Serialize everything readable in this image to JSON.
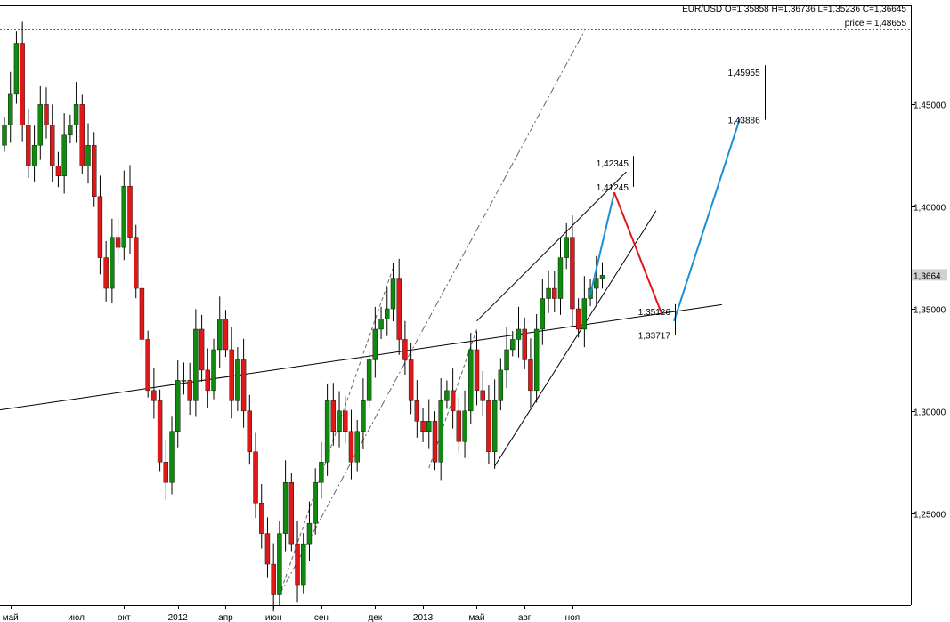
{
  "header": {
    "ohlc": "EUR/USD O=1,35858 H=1,36736 L=1,35236 C=1,36645",
    "price_line_label": "price = 1,48655"
  },
  "chart_data": {
    "type": "candlestick",
    "symbol": "EUR/USD",
    "timeframe": "weekly",
    "ylim": [
      1.205,
      1.4985
    ],
    "y_ticks": [
      {
        "value": 1.25,
        "label": "1,25000"
      },
      {
        "value": 1.3,
        "label": "1,30000"
      },
      {
        "value": 1.35,
        "label": "1,35000"
      },
      {
        "value": 1.4,
        "label": "1,40000"
      },
      {
        "value": 1.45,
        "label": "1,45000"
      }
    ],
    "current_price": {
      "value": 1.3664,
      "label": "1,3664"
    },
    "price_line": {
      "value": 1.48655
    },
    "x_ticks": [
      {
        "bar": 1,
        "label": "май"
      },
      {
        "bar": 12,
        "label": "июл"
      },
      {
        "bar": 20,
        "label": "окт"
      },
      {
        "bar": 29,
        "label": "2012"
      },
      {
        "bar": 37,
        "label": "апр"
      },
      {
        "bar": 45,
        "label": "июн"
      },
      {
        "bar": 53,
        "label": "сен"
      },
      {
        "bar": 62,
        "label": "дек"
      },
      {
        "bar": 70,
        "label": "2013"
      },
      {
        "bar": 79,
        "label": "май"
      },
      {
        "bar": 87,
        "label": "авг"
      },
      {
        "bar": 95,
        "label": "ноя"
      }
    ],
    "closes": [
      1.44,
      1.455,
      1.48,
      1.44,
      1.42,
      1.43,
      1.45,
      1.44,
      1.42,
      1.415,
      1.435,
      1.44,
      1.45,
      1.42,
      1.43,
      1.405,
      1.375,
      1.36,
      1.385,
      1.38,
      1.41,
      1.385,
      1.36,
      1.335,
      1.31,
      1.305,
      1.275,
      1.265,
      1.29,
      1.315,
      1.315,
      1.305,
      1.34,
      1.32,
      1.31,
      1.33,
      1.345,
      1.33,
      1.305,
      1.325,
      1.3,
      1.28,
      1.255,
      1.24,
      1.225,
      1.21,
      1.24,
      1.265,
      1.235,
      1.215,
      1.235,
      1.245,
      1.265,
      1.275,
      1.305,
      1.29,
      1.3,
      1.29,
      1.275,
      1.29,
      1.305,
      1.325,
      1.34,
      1.345,
      1.35,
      1.365,
      1.335,
      1.325,
      1.305,
      1.295,
      1.29,
      1.295,
      1.275,
      1.305,
      1.31,
      1.3,
      1.285,
      1.3,
      1.33,
      1.31,
      1.305,
      1.28,
      1.305,
      1.32,
      1.33,
      1.335,
      1.34,
      1.325,
      1.31,
      1.34,
      1.355,
      1.36,
      1.355,
      1.375,
      1.385,
      1.35,
      1.34,
      1.355,
      1.36,
      1.365,
      1.3664
    ],
    "trendlines": [
      {
        "from": {
          "bar": -2,
          "value": 1.3
        },
        "to": {
          "bar": 120,
          "value": 1.352
        },
        "color": "#000000",
        "style": "solid"
      },
      {
        "from": {
          "bar": 46,
          "value": 1.21
        },
        "to": {
          "bar": 97,
          "value": 1.486
        },
        "color": "#666666",
        "style": "dashdot"
      },
      {
        "from": {
          "bar": 46,
          "value": 1.21
        },
        "to": {
          "bar": 65,
          "value": 1.37
        },
        "color": "#666666",
        "style": "dashed"
      },
      {
        "from": {
          "bar": 71,
          "value": 1.272
        },
        "to": {
          "bar": 79,
          "value": 1.34
        },
        "color": "#666666",
        "style": "dashed"
      },
      {
        "from": {
          "bar": 79,
          "value": 1.344
        },
        "to": {
          "bar": 104,
          "value": 1.417
        },
        "color": "#000000",
        "style": "solid"
      },
      {
        "from": {
          "bar": 82,
          "value": 1.273
        },
        "to": {
          "bar": 109,
          "value": 1.398
        },
        "color": "#000000",
        "style": "solid"
      }
    ],
    "projection": [
      {
        "from": {
          "bar": 98,
          "value": 1.357
        },
        "to": {
          "bar": 102,
          "value": 1.407
        },
        "color": "#1a8fd4"
      },
      {
        "from": {
          "bar": 102,
          "value": 1.407
        },
        "to": {
          "bar": 110,
          "value": 1.347
        },
        "color": "#e01818"
      },
      {
        "from": {
          "bar": 112,
          "value": 1.344
        },
        "to": {
          "bar": 123,
          "value": 1.443
        },
        "color": "#1a8fd4"
      }
    ],
    "annotations": [
      {
        "label": "1,42345",
        "bar": 99,
        "value": 1.4196
      },
      {
        "label": "1,41245",
        "bar": 99,
        "value": 1.408
      },
      {
        "label": "1,35126",
        "bar": 106,
        "value": 1.347
      },
      {
        "label": "1,33717",
        "bar": 106,
        "value": 1.3355
      },
      {
        "label": "1,45955",
        "bar": 121,
        "value": 1.464
      },
      {
        "label": "1,43886",
        "bar": 121,
        "value": 1.4407
      }
    ],
    "colors": {
      "up": "#0f8a0f",
      "down": "#e01818",
      "wick": "#000000",
      "grid": "#888888",
      "trend_up": "#1a8fd4",
      "trend_down": "#e01818"
    }
  }
}
